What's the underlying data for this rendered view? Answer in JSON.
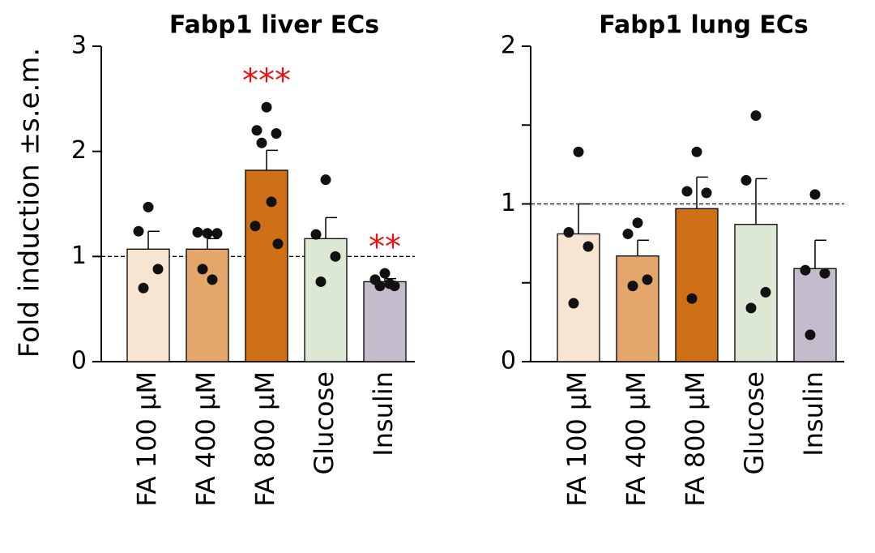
{
  "chart_data": [
    {
      "type": "bar",
      "title": "Fabp1 liver ECs",
      "ylabel": "Fold induction ±s.e.m.",
      "categories": [
        "FA 100 μM",
        "FA 400 μM",
        "FA 800 μM",
        "Glucose",
        "Insulin"
      ],
      "colors": [
        "#f7e4d1",
        "#e5a66c",
        "#cf7016",
        "#dce7d4",
        "#c2bccc"
      ],
      "values": [
        1.07,
        1.07,
        1.82,
        1.17,
        0.76
      ],
      "errors": [
        0.17,
        0.1,
        0.19,
        0.2,
        0.03
      ],
      "points": [
        [
          1.47,
          1.24,
          0.88,
          0.7
        ],
        [
          1.22,
          1.23,
          1.22,
          0.88,
          0.78
        ],
        [
          2.42,
          2.2,
          2.17,
          2.08,
          1.52,
          1.29,
          1.12
        ],
        [
          1.73,
          1.21,
          1.0,
          0.76
        ],
        [
          0.84,
          0.78,
          0.72,
          0.72,
          0.74
        ]
      ],
      "ylim": [
        0,
        3
      ],
      "yticks": [
        0,
        1,
        2,
        3
      ],
      "hline": 1,
      "annotations": [
        {
          "text": "***",
          "category": 2
        },
        {
          "text": "**",
          "category": 4
        }
      ],
      "annotation_color": "#ee1111"
    },
    {
      "type": "bar",
      "title": "Fabp1 lung ECs",
      "categories": [
        "FA 100 μM",
        "FA 400 μM",
        "FA 800 μM",
        "Glucose",
        "Insulin"
      ],
      "colors": [
        "#f7e4d1",
        "#e5a66c",
        "#cf7016",
        "#dce7d4",
        "#c2bccc"
      ],
      "values": [
        0.81,
        0.67,
        0.97,
        0.87,
        0.59
      ],
      "errors": [
        0.19,
        0.1,
        0.2,
        0.29,
        0.18
      ],
      "points": [
        [
          1.33,
          0.82,
          0.73,
          0.37
        ],
        [
          0.88,
          0.81,
          0.52,
          0.48
        ],
        [
          1.33,
          1.08,
          1.07,
          0.4
        ],
        [
          1.56,
          1.15,
          0.44,
          0.34
        ],
        [
          1.06,
          0.58,
          0.56,
          0.17
        ]
      ],
      "ylim": [
        0,
        2
      ],
      "yticks": [
        0,
        1,
        2
      ],
      "yminor": [
        0.5,
        1.5
      ],
      "hline": 1
    }
  ]
}
